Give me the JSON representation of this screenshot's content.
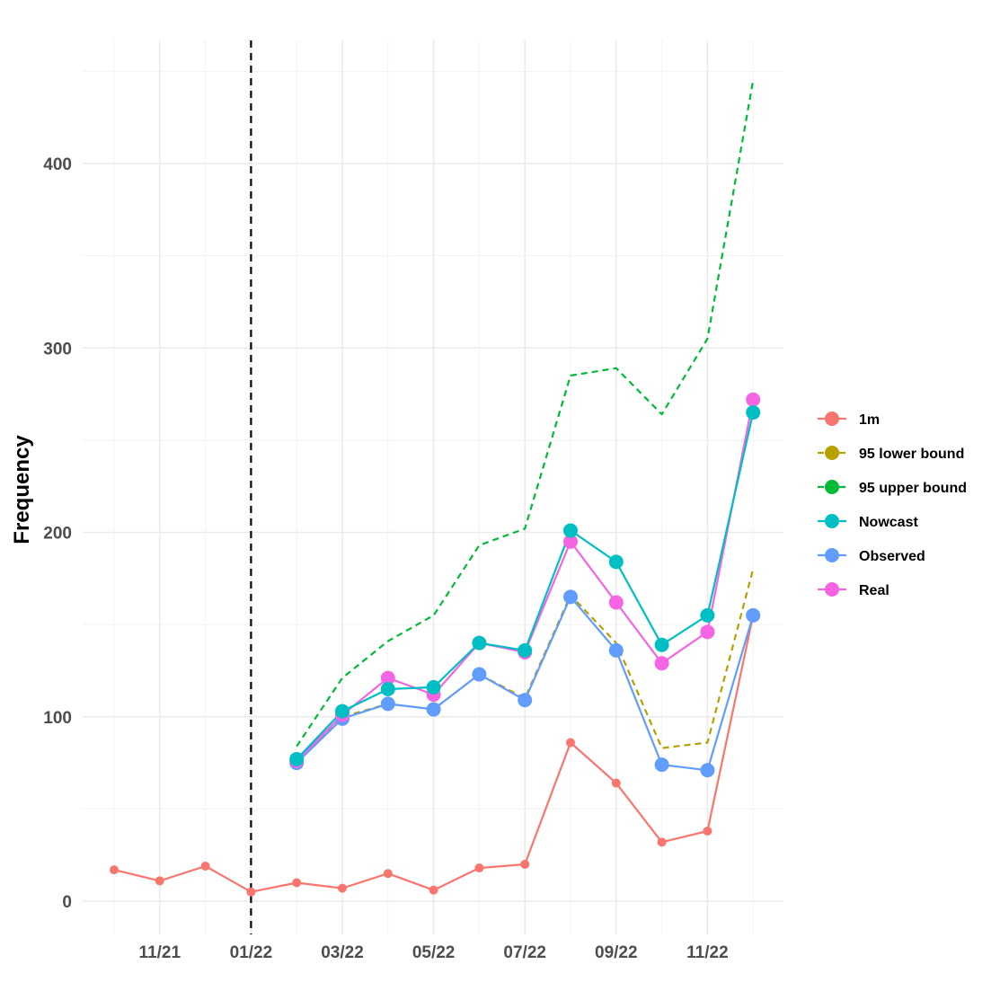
{
  "chart_data": {
    "type": "line",
    "xlabel": "",
    "ylabel": "Frequency",
    "ylim": [
      0,
      450
    ],
    "y_ticks": [
      0,
      100,
      200,
      300,
      400
    ],
    "x_months": [
      "10/21",
      "11/21",
      "12/21",
      "01/22",
      "02/22",
      "03/22",
      "04/22",
      "05/22",
      "06/22",
      "07/22",
      "08/22",
      "09/22",
      "10/22",
      "11/22",
      "12/22"
    ],
    "x_tick_labels": [
      "11/21",
      "01/22",
      "03/22",
      "05/22",
      "07/22",
      "09/22",
      "11/22"
    ],
    "reference_line": "01/22",
    "legend_position": "right",
    "grid": true,
    "series": [
      {
        "name": "1m",
        "color": "#F8766D",
        "dashed": false,
        "marker": "small",
        "x": [
          "10/21",
          "11/21",
          "12/21",
          "01/22",
          "02/22",
          "03/22",
          "04/22",
          "05/22",
          "06/22",
          "07/22",
          "08/22",
          "09/22",
          "10/22",
          "11/22",
          "12/22"
        ],
        "values": [
          17,
          11,
          19,
          5,
          10,
          7,
          15,
          6,
          18,
          20,
          86,
          64,
          32,
          38,
          155
        ]
      },
      {
        "name": "95 lower bound",
        "color": "#B79F00",
        "dashed": true,
        "marker": "none",
        "x": [
          "02/22",
          "03/22",
          "04/22",
          "05/22",
          "06/22",
          "07/22",
          "08/22",
          "09/22",
          "10/22",
          "11/22",
          "12/22"
        ],
        "values": [
          76,
          100,
          107,
          104,
          123,
          110,
          166,
          140,
          83,
          86,
          180
        ]
      },
      {
        "name": "95 upper bound",
        "color": "#00BA38",
        "dashed": true,
        "marker": "none",
        "x": [
          "02/22",
          "03/22",
          "04/22",
          "05/22",
          "06/22",
          "07/22",
          "08/22",
          "09/22",
          "10/22",
          "11/22",
          "12/22"
        ],
        "values": [
          84,
          121,
          141,
          155,
          193,
          202,
          285,
          289,
          264,
          305,
          445
        ]
      },
      {
        "name": "Nowcast",
        "color": "#00BFC4",
        "dashed": false,
        "marker": "large",
        "x": [
          "02/22",
          "03/22",
          "04/22",
          "05/22",
          "06/22",
          "07/22",
          "08/22",
          "09/22",
          "10/22",
          "11/22",
          "12/22"
        ],
        "values": [
          77,
          103,
          115,
          116,
          140,
          136,
          201,
          184,
          139,
          155,
          265
        ]
      },
      {
        "name": "Observed",
        "color": "#619CFF",
        "dashed": false,
        "marker": "large",
        "x": [
          "02/22",
          "03/22",
          "04/22",
          "05/22",
          "06/22",
          "07/22",
          "08/22",
          "09/22",
          "10/22",
          "11/22",
          "12/22"
        ],
        "values": [
          75,
          99,
          107,
          104,
          123,
          109,
          165,
          136,
          74,
          71,
          155
        ]
      },
      {
        "name": "Real",
        "color": "#F564E3",
        "dashed": false,
        "marker": "large",
        "x": [
          "02/22",
          "03/22",
          "04/22",
          "05/22",
          "06/22",
          "07/22",
          "08/22",
          "09/22",
          "10/22",
          "11/22",
          "12/22"
        ],
        "values": [
          76,
          101,
          121,
          112,
          140,
          135,
          195,
          162,
          129,
          146,
          272
        ]
      }
    ]
  }
}
